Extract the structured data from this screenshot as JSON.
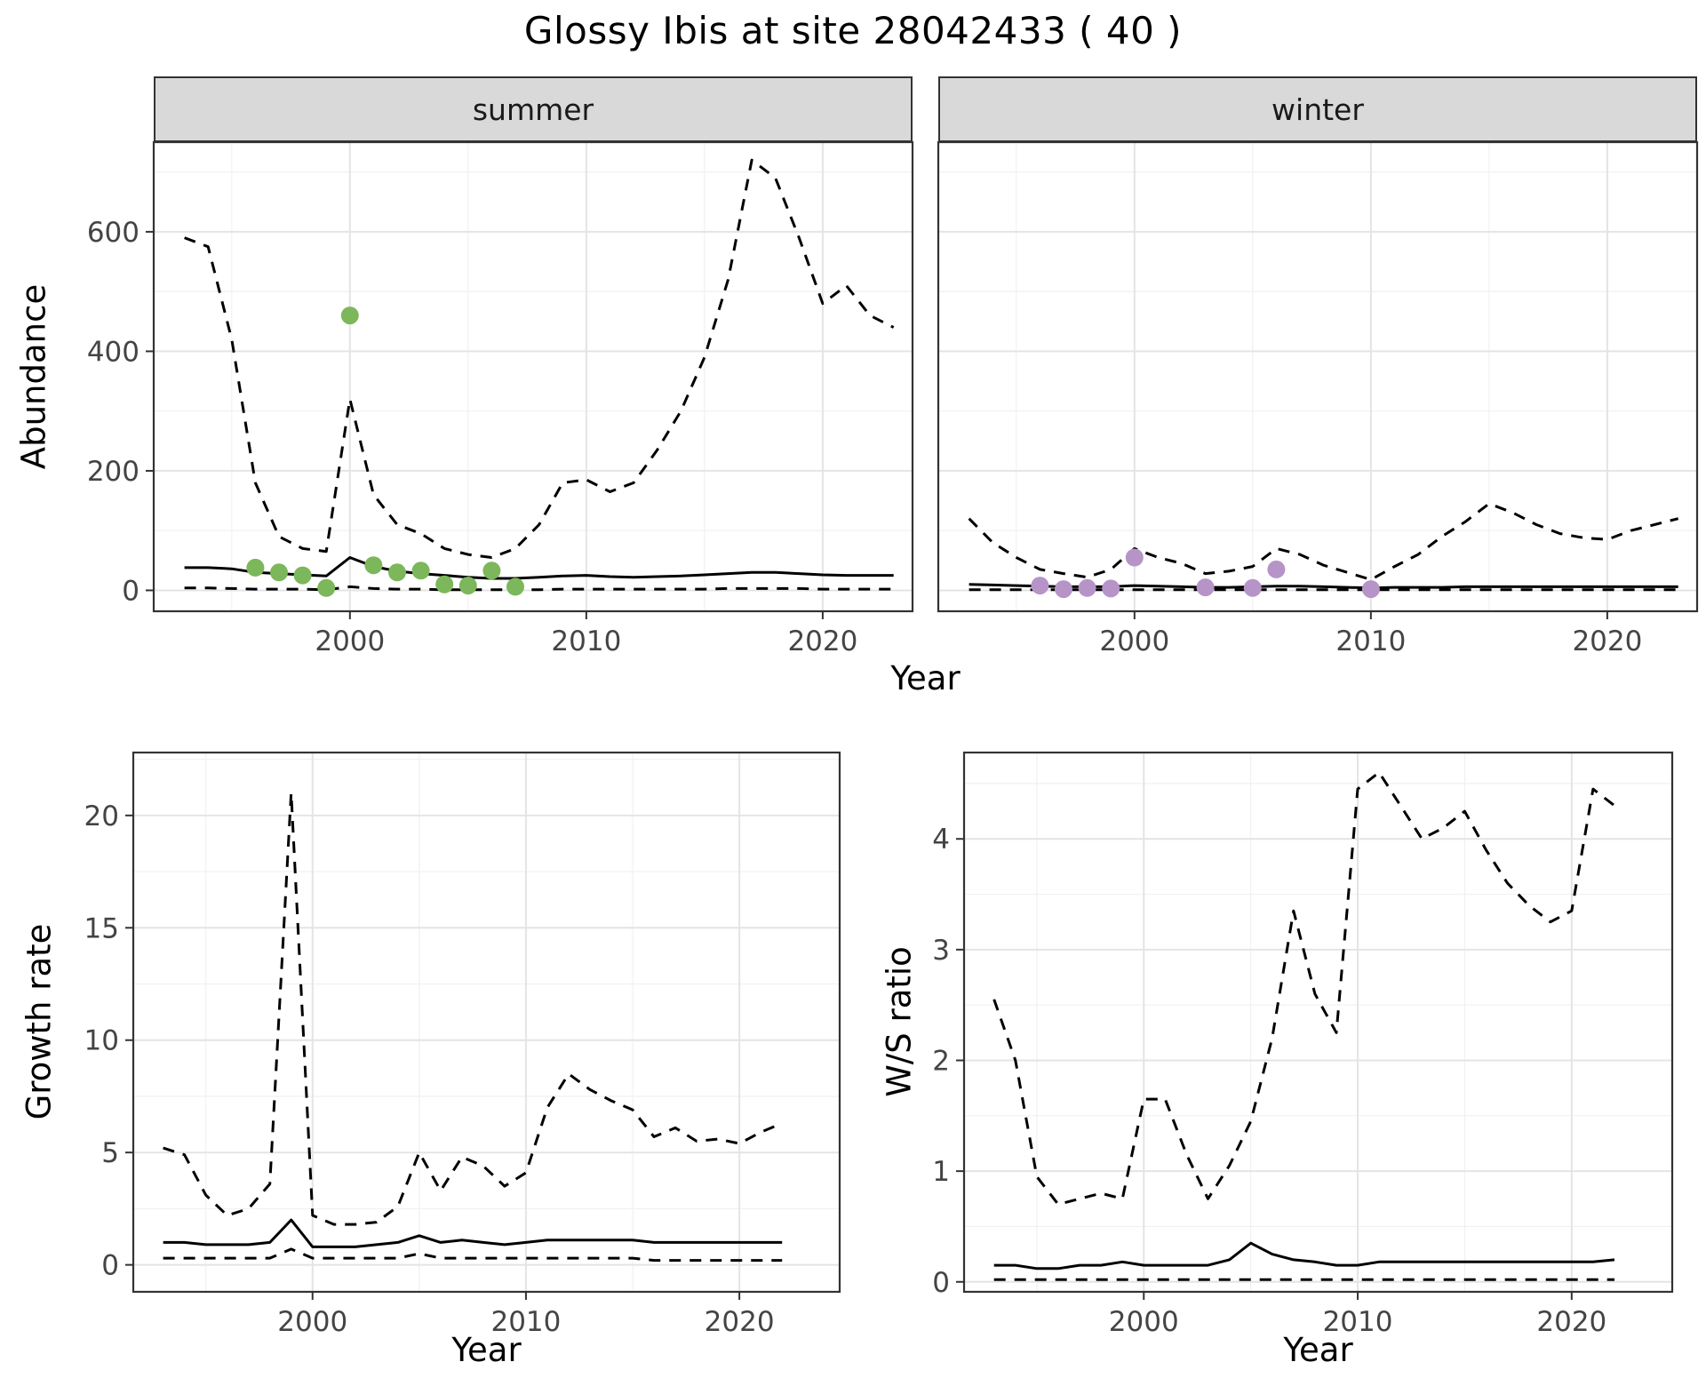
{
  "title": "Glossy Ibis at site 28042433 ( 40 )",
  "style": {
    "line_color": "#000000",
    "summer_point_color": "#7cb75b",
    "winter_point_color": "#b694c8",
    "grid_major_color": "#e4e4e4",
    "grid_minor_color": "#f1f1f1",
    "panel_border_color": "#333333",
    "tick_text_color": "#444444",
    "strip_bg_color": "#d9d9d9"
  },
  "chart_data": [
    {
      "id": "abundance_summer",
      "type": "line",
      "facet_label": "summer",
      "xlabel": "Year",
      "ylabel": "Abundance",
      "xlim": [
        1991.7,
        2023.8
      ],
      "ylim": [
        -35,
        750
      ],
      "xticks": [
        2000,
        2010,
        2020
      ],
      "yticks": [
        0,
        200,
        400,
        600
      ],
      "x_minor": [
        1995,
        2005,
        2015
      ],
      "y_minor": [
        100,
        300,
        500,
        700
      ],
      "grid": true,
      "legend": "none",
      "x": [
        1993,
        1994,
        1995,
        1996,
        1997,
        1998,
        1999,
        2000,
        2001,
        2002,
        2003,
        2004,
        2005,
        2006,
        2007,
        2008,
        2009,
        2010,
        2011,
        2012,
        2013,
        2014,
        2015,
        2016,
        2017,
        2018,
        2019,
        2020,
        2021,
        2022,
        2023
      ],
      "series": [
        {
          "name": "upper_ci",
          "style": "dashed",
          "values": [
            590,
            575,
            420,
            180,
            90,
            70,
            65,
            320,
            160,
            110,
            95,
            70,
            60,
            55,
            70,
            110,
            180,
            185,
            165,
            180,
            235,
            300,
            390,
            520,
            720,
            690,
            590,
            480,
            510,
            460,
            440
          ]
        },
        {
          "name": "median",
          "style": "solid",
          "values": [
            38,
            38,
            36,
            30,
            28,
            26,
            24,
            55,
            40,
            32,
            28,
            25,
            22,
            20,
            20,
            22,
            24,
            25,
            23,
            22,
            23,
            24,
            26,
            28,
            30,
            30,
            28,
            26,
            25,
            25,
            25
          ]
        },
        {
          "name": "lower_ci",
          "style": "dashed",
          "values": [
            4,
            4,
            3,
            2,
            2,
            2,
            1,
            6,
            3,
            2,
            2,
            1,
            1,
            1,
            1,
            1,
            2,
            2,
            2,
            2,
            2,
            2,
            2,
            3,
            3,
            3,
            3,
            2,
            2,
            2,
            2
          ]
        }
      ],
      "points": {
        "name": "observed_counts_summer",
        "color": "#7cb75b",
        "x": [
          1996,
          1997,
          1998,
          1999,
          2000,
          2001,
          2002,
          2003,
          2004,
          2005,
          2006,
          2007
        ],
        "y": [
          38,
          30,
          25,
          4,
          460,
          42,
          30,
          33,
          10,
          8,
          33,
          6
        ]
      }
    },
    {
      "id": "abundance_winter",
      "type": "line",
      "facet_label": "winter",
      "xlabel": "Year",
      "ylabel": "Abundance",
      "xlim": [
        1991.7,
        2023.8
      ],
      "ylim": [
        -35,
        750
      ],
      "xticks": [
        2000,
        2010,
        2020
      ],
      "yticks": [
        0,
        200,
        400,
        600
      ],
      "x_minor": [
        1995,
        2005,
        2015
      ],
      "y_minor": [
        100,
        300,
        500,
        700
      ],
      "grid": true,
      "legend": "none",
      "x": [
        1993,
        1994,
        1995,
        1996,
        1997,
        1998,
        1999,
        2000,
        2001,
        2002,
        2003,
        2004,
        2005,
        2006,
        2007,
        2008,
        2009,
        2010,
        2011,
        2012,
        2013,
        2014,
        2015,
        2016,
        2017,
        2018,
        2019,
        2020,
        2021,
        2022,
        2023
      ],
      "series": [
        {
          "name": "upper_ci",
          "style": "dashed",
          "values": [
            120,
            80,
            55,
            35,
            28,
            22,
            35,
            70,
            55,
            45,
            28,
            32,
            40,
            70,
            60,
            42,
            30,
            18,
            40,
            60,
            90,
            115,
            145,
            130,
            110,
            95,
            88,
            85,
            100,
            110,
            120
          ]
        },
        {
          "name": "median",
          "style": "solid",
          "values": [
            10,
            9,
            8,
            7,
            6,
            6,
            6,
            8,
            7,
            6,
            5,
            5,
            6,
            7,
            7,
            6,
            5,
            4,
            5,
            5,
            5,
            6,
            6,
            6,
            6,
            6,
            6,
            6,
            6,
            6,
            6
          ]
        },
        {
          "name": "lower_ci",
          "style": "dashed",
          "values": [
            1,
            1,
            1,
            1,
            1,
            1,
            1,
            1,
            1,
            1,
            1,
            1,
            1,
            1,
            1,
            1,
            1,
            1,
            1,
            1,
            1,
            1,
            1,
            1,
            1,
            1,
            1,
            1,
            1,
            1,
            1
          ]
        }
      ],
      "points": {
        "name": "observed_counts_winter",
        "color": "#b694c8",
        "x": [
          1996,
          1997,
          1998,
          1999,
          2000,
          2003,
          2005,
          2006,
          2010
        ],
        "y": [
          8,
          2,
          4,
          3,
          55,
          5,
          4,
          35,
          2
        ]
      }
    },
    {
      "id": "growth_rate",
      "type": "line",
      "facet_label": "",
      "xlabel": "Year",
      "ylabel": "Growth rate",
      "xlim": [
        1991.6,
        2024.7
      ],
      "ylim": [
        -1.2,
        22.8
      ],
      "xticks": [
        2000,
        2010,
        2020
      ],
      "yticks": [
        0,
        5,
        10,
        15,
        20
      ],
      "x_minor": [
        1995,
        2005,
        2015
      ],
      "y_minor": [
        2.5,
        7.5,
        12.5,
        17.5,
        22.5
      ],
      "grid": true,
      "legend": "none",
      "x": [
        1993,
        1994,
        1995,
        1996,
        1997,
        1998,
        1999,
        2000,
        2001,
        2002,
        2003,
        2004,
        2005,
        2006,
        2007,
        2008,
        2009,
        2010,
        2011,
        2012,
        2013,
        2014,
        2015,
        2016,
        2017,
        2018,
        2019,
        2020,
        2021,
        2022
      ],
      "series": [
        {
          "name": "upper_ci",
          "style": "dashed",
          "values": [
            5.2,
            4.9,
            3.1,
            2.2,
            2.5,
            3.6,
            21.0,
            2.2,
            1.8,
            1.8,
            1.9,
            2.6,
            5.0,
            3.3,
            4.8,
            4.4,
            3.5,
            4.1,
            7.0,
            8.5,
            7.8,
            7.3,
            6.9,
            5.7,
            6.1,
            5.5,
            5.6,
            5.4,
            5.9,
            6.3
          ]
        },
        {
          "name": "median",
          "style": "solid",
          "values": [
            1.0,
            1.0,
            0.9,
            0.9,
            0.9,
            1.0,
            2.0,
            0.8,
            0.8,
            0.8,
            0.9,
            1.0,
            1.3,
            1.0,
            1.1,
            1.0,
            0.9,
            1.0,
            1.1,
            1.1,
            1.1,
            1.1,
            1.1,
            1.0,
            1.0,
            1.0,
            1.0,
            1.0,
            1.0,
            1.0
          ]
        },
        {
          "name": "lower_ci",
          "style": "dashed",
          "values": [
            0.3,
            0.3,
            0.3,
            0.3,
            0.3,
            0.3,
            0.7,
            0.3,
            0.3,
            0.3,
            0.3,
            0.3,
            0.5,
            0.3,
            0.3,
            0.3,
            0.3,
            0.3,
            0.3,
            0.3,
            0.3,
            0.3,
            0.3,
            0.2,
            0.2,
            0.2,
            0.2,
            0.2,
            0.2,
            0.2
          ]
        }
      ]
    },
    {
      "id": "ws_ratio",
      "type": "line",
      "facet_label": "",
      "xlabel": "Year",
      "ylabel": "W/S ratio",
      "xlim": [
        1991.6,
        2024.7
      ],
      "ylim": [
        -0.09,
        4.78
      ],
      "xticks": [
        2000,
        2010,
        2020
      ],
      "yticks": [
        0,
        1,
        2,
        3,
        4
      ],
      "x_minor": [
        1995,
        2005,
        2015
      ],
      "y_minor": [
        0.5,
        1.5,
        2.5,
        3.5,
        4.5
      ],
      "grid": true,
      "legend": "none",
      "x": [
        1993,
        1994,
        1995,
        1996,
        1997,
        1998,
        1999,
        2000,
        2001,
        2002,
        2003,
        2004,
        2005,
        2006,
        2007,
        2008,
        2009,
        2010,
        2011,
        2012,
        2013,
        2014,
        2015,
        2016,
        2017,
        2018,
        2019,
        2020,
        2021,
        2022
      ],
      "series": [
        {
          "name": "upper_ci",
          "style": "dashed",
          "values": [
            2.55,
            2.0,
            0.95,
            0.7,
            0.75,
            0.8,
            0.75,
            1.65,
            1.65,
            1.15,
            0.75,
            1.05,
            1.45,
            2.2,
            3.35,
            2.6,
            2.25,
            4.45,
            4.6,
            4.3,
            4.0,
            4.1,
            4.25,
            3.9,
            3.6,
            3.4,
            3.25,
            3.35,
            4.45,
            4.3
          ]
        },
        {
          "name": "median",
          "style": "solid",
          "values": [
            0.15,
            0.15,
            0.12,
            0.12,
            0.15,
            0.15,
            0.18,
            0.15,
            0.15,
            0.15,
            0.15,
            0.2,
            0.35,
            0.25,
            0.2,
            0.18,
            0.15,
            0.15,
            0.18,
            0.18,
            0.18,
            0.18,
            0.18,
            0.18,
            0.18,
            0.18,
            0.18,
            0.18,
            0.18,
            0.2
          ]
        },
        {
          "name": "lower_ci",
          "style": "dashed",
          "values": [
            0.02,
            0.02,
            0.02,
            0.02,
            0.02,
            0.02,
            0.02,
            0.02,
            0.02,
            0.02,
            0.02,
            0.02,
            0.02,
            0.02,
            0.02,
            0.02,
            0.02,
            0.02,
            0.02,
            0.02,
            0.02,
            0.02,
            0.02,
            0.02,
            0.02,
            0.02,
            0.02,
            0.02,
            0.02,
            0.02
          ]
        }
      ]
    }
  ]
}
